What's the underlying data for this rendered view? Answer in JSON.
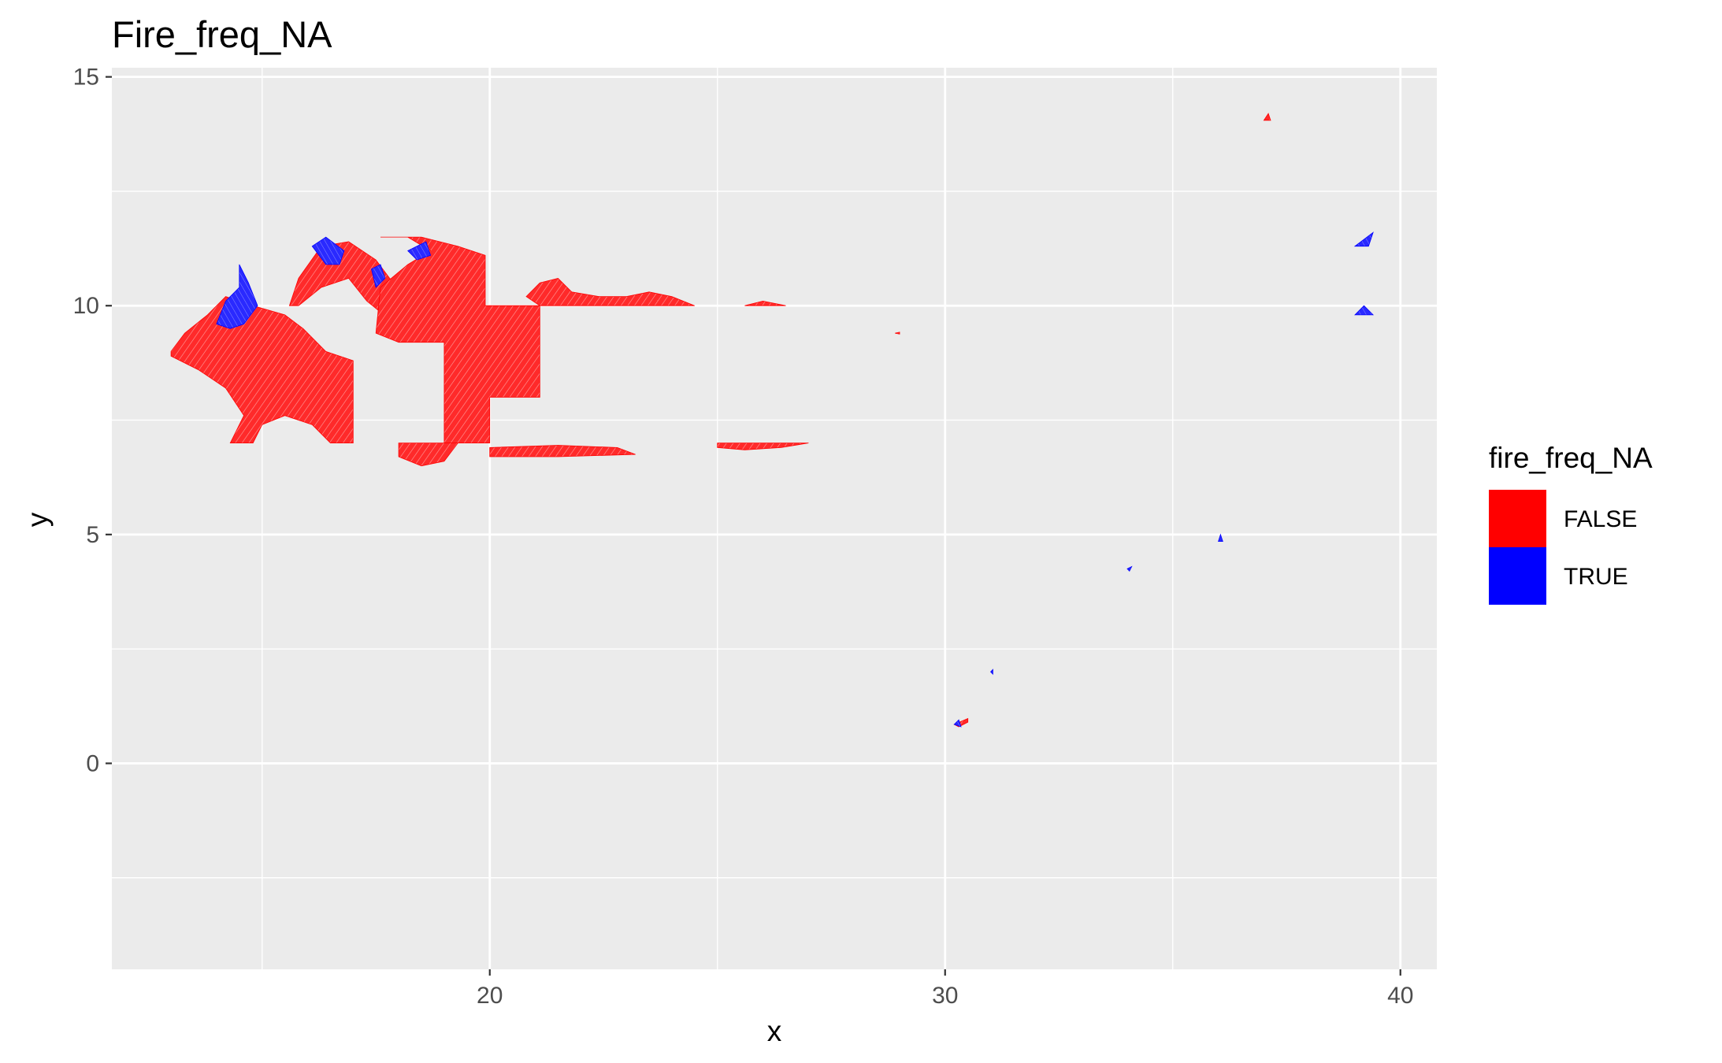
{
  "chart_data": {
    "type": "scatter",
    "title": "Fire_freq_NA",
    "xlabel": "x",
    "ylabel": "y",
    "xlim": [
      11.7,
      40.8
    ],
    "ylim": [
      -4.5,
      15.2
    ],
    "x_ticks": [
      20,
      30,
      40
    ],
    "y_ticks": [
      0,
      5,
      10,
      15
    ],
    "x_minor_ticks": [
      15,
      25,
      35
    ],
    "y_minor_ticks": [
      -2.5,
      2.5,
      7.5,
      12.5
    ],
    "grid": true,
    "legend_position": "right",
    "legend": {
      "title": "fire_freq_NA",
      "entries": [
        {
          "label": "FALSE",
          "color": "#ff0000"
        },
        {
          "label": "TRUE",
          "color": "#0000ff"
        }
      ]
    },
    "colors": {
      "FALSE": "#ff0000",
      "TRUE": "#0000ff",
      "panel_background": "#ebebeb",
      "grid": "#ffffff"
    },
    "regions": [
      {
        "category": "FALSE",
        "polygon": [
          [
            13.0,
            9.0
          ],
          [
            13.3,
            9.4
          ],
          [
            13.8,
            9.8
          ],
          [
            14.2,
            10.2
          ],
          [
            14.8,
            10.0
          ],
          [
            15.5,
            9.8
          ],
          [
            15.9,
            9.5
          ],
          [
            16.4,
            9.0
          ],
          [
            17.0,
            8.8
          ],
          [
            17.0,
            7.0
          ],
          [
            16.5,
            7.0
          ],
          [
            16.1,
            7.4
          ],
          [
            15.5,
            7.6
          ],
          [
            15.0,
            7.4
          ],
          [
            14.8,
            7.0
          ],
          [
            14.3,
            7.0
          ],
          [
            14.6,
            7.6
          ],
          [
            14.2,
            8.2
          ],
          [
            13.6,
            8.6
          ],
          [
            13.0,
            8.9
          ]
        ]
      },
      {
        "category": "FALSE",
        "polygon": [
          [
            15.6,
            10.0
          ],
          [
            15.8,
            10.6
          ],
          [
            16.3,
            11.3
          ],
          [
            16.9,
            11.4
          ],
          [
            17.5,
            11.0
          ],
          [
            17.8,
            10.6
          ],
          [
            18.2,
            10.3
          ],
          [
            18.4,
            10.0
          ],
          [
            18.2,
            9.7
          ],
          [
            17.8,
            9.7
          ],
          [
            17.3,
            10.1
          ],
          [
            16.9,
            10.6
          ],
          [
            16.3,
            10.4
          ],
          [
            15.8,
            10.0
          ]
        ]
      },
      {
        "category": "FALSE",
        "polygon": [
          [
            17.6,
            11.5
          ],
          [
            18.5,
            11.5
          ],
          [
            19.3,
            11.3
          ],
          [
            19.9,
            11.1
          ],
          [
            19.9,
            10.0
          ],
          [
            21.1,
            10.0
          ],
          [
            21.1,
            8.0
          ],
          [
            20.0,
            8.0
          ],
          [
            20.0,
            7.0
          ],
          [
            19.0,
            7.0
          ],
          [
            19.0,
            9.2
          ],
          [
            18.0,
            9.2
          ],
          [
            17.5,
            9.4
          ],
          [
            17.6,
            10.4
          ],
          [
            18.2,
            10.9
          ],
          [
            18.7,
            11.2
          ],
          [
            18.2,
            11.5
          ],
          [
            17.6,
            11.5
          ]
        ]
      },
      {
        "category": "FALSE",
        "polygon": [
          [
            20.8,
            10.2
          ],
          [
            21.1,
            10.5
          ],
          [
            21.5,
            10.6
          ],
          [
            21.8,
            10.3
          ],
          [
            22.4,
            10.2
          ],
          [
            23.0,
            10.2
          ],
          [
            23.5,
            10.3
          ],
          [
            24.0,
            10.2
          ],
          [
            24.5,
            10.0
          ],
          [
            21.1,
            10.0
          ]
        ]
      },
      {
        "category": "FALSE",
        "polygon": [
          [
            25.6,
            10.0
          ],
          [
            26.0,
            10.1
          ],
          [
            26.5,
            10.0
          ]
        ]
      },
      {
        "category": "FALSE",
        "polygon": [
          [
            25.0,
            7.0
          ],
          [
            27.0,
            7.0
          ],
          [
            26.4,
            6.9
          ],
          [
            25.6,
            6.85
          ],
          [
            25.0,
            6.9
          ]
        ]
      },
      {
        "category": "FALSE",
        "polygon": [
          [
            18.0,
            7.0
          ],
          [
            19.3,
            7.0
          ],
          [
            19.0,
            6.6
          ],
          [
            18.5,
            6.5
          ],
          [
            18.0,
            6.7
          ]
        ]
      },
      {
        "category": "FALSE",
        "polygon": [
          [
            20.0,
            6.9
          ],
          [
            21.5,
            6.95
          ],
          [
            22.8,
            6.9
          ],
          [
            23.2,
            6.75
          ],
          [
            21.5,
            6.7
          ],
          [
            20.0,
            6.7
          ]
        ]
      },
      {
        "category": "FALSE",
        "polygon": [
          [
            30.2,
            0.85
          ],
          [
            30.5,
            0.98
          ],
          [
            30.5,
            0.9
          ],
          [
            30.3,
            0.8
          ]
        ]
      },
      {
        "category": "FALSE",
        "polygon": [
          [
            37.0,
            14.05
          ],
          [
            37.1,
            14.2
          ],
          [
            37.15,
            14.05
          ]
        ]
      },
      {
        "category": "FALSE",
        "polygon": [
          [
            28.9,
            9.4
          ],
          [
            29.0,
            9.42
          ],
          [
            29.0,
            9.38
          ]
        ]
      },
      {
        "category": "TRUE",
        "polygon": [
          [
            14.2,
            10.1
          ],
          [
            14.5,
            10.4
          ],
          [
            14.5,
            10.9
          ],
          [
            14.7,
            10.5
          ],
          [
            14.9,
            10.0
          ],
          [
            14.6,
            9.6
          ],
          [
            14.3,
            9.5
          ],
          [
            14.0,
            9.6
          ]
        ]
      },
      {
        "category": "TRUE",
        "polygon": [
          [
            16.1,
            11.3
          ],
          [
            16.4,
            11.5
          ],
          [
            16.8,
            11.2
          ],
          [
            16.7,
            10.9
          ],
          [
            16.4,
            10.9
          ]
        ]
      },
      {
        "category": "TRUE",
        "polygon": [
          [
            17.4,
            10.8
          ],
          [
            17.6,
            10.9
          ],
          [
            17.7,
            10.6
          ],
          [
            17.5,
            10.4
          ]
        ]
      },
      {
        "category": "TRUE",
        "polygon": [
          [
            18.2,
            11.2
          ],
          [
            18.6,
            11.4
          ],
          [
            18.7,
            11.1
          ],
          [
            18.4,
            11.0
          ]
        ]
      },
      {
        "category": "TRUE",
        "polygon": [
          [
            39.0,
            11.3
          ],
          [
            39.4,
            11.6
          ],
          [
            39.3,
            11.3
          ]
        ]
      },
      {
        "category": "TRUE",
        "polygon": [
          [
            39.0,
            9.8
          ],
          [
            39.2,
            10.0
          ],
          [
            39.4,
            9.8
          ]
        ]
      },
      {
        "category": "TRUE",
        "polygon": [
          [
            36.0,
            4.85
          ],
          [
            36.05,
            5.0
          ],
          [
            36.1,
            4.85
          ]
        ]
      },
      {
        "category": "TRUE",
        "polygon": [
          [
            34.0,
            4.25
          ],
          [
            34.1,
            4.3
          ],
          [
            34.05,
            4.2
          ]
        ]
      },
      {
        "category": "TRUE",
        "polygon": [
          [
            31.0,
            2.0
          ],
          [
            31.05,
            2.05
          ],
          [
            31.05,
            1.95
          ]
        ]
      },
      {
        "category": "TRUE",
        "polygon": [
          [
            30.2,
            0.85
          ],
          [
            30.3,
            0.95
          ],
          [
            30.35,
            0.8
          ]
        ]
      }
    ]
  }
}
